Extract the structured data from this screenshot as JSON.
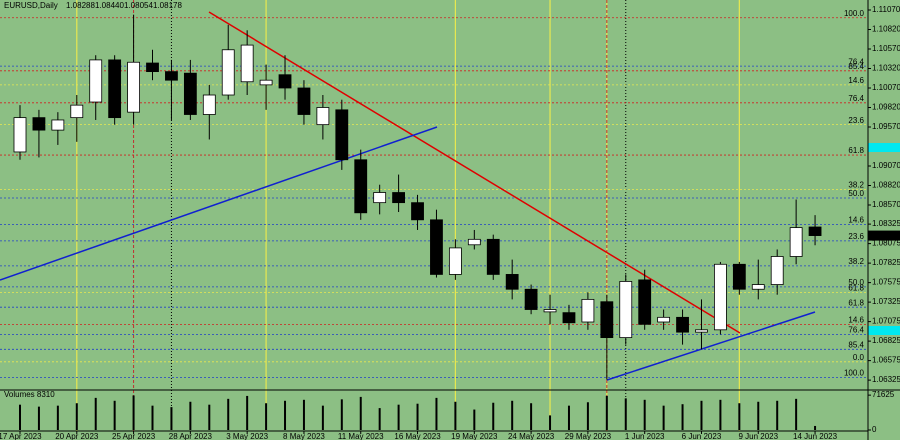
{
  "chart_data": {
    "type": "candlestick",
    "title": "EURUSD,Daily",
    "quote": [
      "1.08288",
      "1.08440",
      "1.08054",
      "1.08178"
    ],
    "categories": [
      "17 Apr 2023",
      null,
      null,
      "20 Apr 2023",
      null,
      null,
      "25 Apr 2023",
      null,
      null,
      "28 Apr 2023",
      null,
      null,
      "3 May 2023",
      null,
      null,
      "8 May 2023",
      null,
      null,
      "11 May 2023",
      null,
      null,
      "16 May 2023",
      null,
      null,
      "19 May 2023",
      null,
      null,
      "24 May 2023",
      null,
      null,
      "29 May 2023",
      null,
      null,
      "1 Jun 2023",
      null,
      null,
      "6 Jun 2023",
      null,
      null,
      "9 Jun 2023",
      null,
      null,
      "14 Jun 2023"
    ],
    "open": [
      1.0925,
      1.0969,
      1.0953,
      1.0969,
      1.0989,
      1.1043,
      1.0976,
      1.1039,
      1.1028,
      1.1026,
      1.0973,
      1.0998,
      1.1015,
      1.1011,
      1.1024,
      1.1007,
      1.096,
      1.0979,
      1.0915,
      1.086,
      1.0873,
      1.086,
      1.0838,
      1.0768,
      1.0806,
      1.0813,
      1.0768,
      1.0749,
      1.072,
      1.0719,
      1.0707,
      1.0733,
      1.0687,
      1.0761,
      1.0707,
      1.0713,
      1.0694,
      1.0697,
      1.0781,
      1.0749,
      1.0755,
      1.0791,
      1.08288
    ],
    "high": [
      1.0985,
      1.0979,
      1.0976,
      1.0998,
      1.1049,
      1.1049,
      1.1101,
      1.1056,
      1.1043,
      1.1043,
      1.1011,
      1.1088,
      1.1081,
      1.1037,
      1.1049,
      1.1017,
      1.0998,
      1.0992,
      1.0928,
      1.0883,
      1.0896,
      1.087,
      1.0851,
      1.0813,
      1.0825,
      1.0819,
      1.0787,
      1.0755,
      1.0742,
      1.0729,
      1.0745,
      1.0742,
      1.0768,
      1.0774,
      1.0723,
      1.0723,
      1.0736,
      1.0784,
      1.0784,
      1.0787,
      1.08,
      1.0864,
      1.0844
    ],
    "low": [
      1.0915,
      1.0918,
      1.0934,
      1.0938,
      1.0966,
      1.096,
      1.096,
      1.1017,
      1.0966,
      1.0966,
      1.0941,
      1.0992,
      1.0998,
      1.0979,
      1.0992,
      1.096,
      1.0941,
      1.0902,
      1.0838,
      1.0845,
      1.0848,
      1.0825,
      1.0764,
      1.0761,
      1.08,
      1.0761,
      1.0736,
      1.0717,
      1.0704,
      1.0697,
      1.0697,
      1.0633,
      1.0678,
      1.0697,
      1.0697,
      1.0678,
      1.0672,
      1.0691,
      1.0742,
      1.0736,
      1.0742,
      1.0781,
      1.08054
    ],
    "close": [
      1.0969,
      1.0953,
      1.0966,
      1.0985,
      1.1043,
      1.0969,
      1.104,
      1.1028,
      1.1017,
      1.0973,
      1.0998,
      1.1056,
      1.1062,
      1.1017,
      1.1007,
      1.0973,
      1.0982,
      1.0915,
      1.0847,
      1.0873,
      1.086,
      1.0838,
      1.0768,
      1.0802,
      1.0813,
      1.0768,
      1.0749,
      1.0723,
      1.0723,
      1.0706,
      1.0736,
      1.0687,
      1.0759,
      1.0704,
      1.0713,
      1.0694,
      1.0697,
      1.0781,
      1.0749,
      1.0755,
      1.0791,
      1.0828,
      1.08178
    ],
    "up_color": "#ffffff",
    "down_color": "#000000",
    "ylim": [
      1.06224,
      1.11198
    ],
    "yticks": [
      {
        "value": 1.1107,
        "label": "1.11070"
      },
      {
        "value": 1.1082,
        "label": "1.10820"
      },
      {
        "value": 1.1057,
        "label": "1.10570"
      },
      {
        "value": 1.1032,
        "label": "1.10320"
      },
      {
        "value": 1.1007,
        "label": "1.10070"
      },
      {
        "value": 1.0982,
        "label": "1.09820"
      },
      {
        "value": 1.0957,
        "label": "1.09570"
      },
      {
        "value": 1.0907,
        "label": "1.09070"
      },
      {
        "value": 1.0882,
        "label": "1.08820"
      },
      {
        "value": 1.0857,
        "label": "1.08570"
      },
      {
        "value": 1.08325,
        "label": "1.08325"
      },
      {
        "value": 1.08075,
        "label": "1.08075"
      },
      {
        "value": 1.07825,
        "label": "1.07825"
      },
      {
        "value": 1.07575,
        "label": "1.07575"
      },
      {
        "value": 1.07325,
        "label": "1.07325"
      },
      {
        "value": 1.07075,
        "label": "1.07075"
      },
      {
        "value": 1.06825,
        "label": "1.06825"
      },
      {
        "value": 1.06575,
        "label": "1.06575"
      },
      {
        "value": 1.06325,
        "label": "1.06325"
      }
    ],
    "levels": [
      {
        "label": "100.0",
        "value": 1.1097,
        "color": "#d02020"
      },
      {
        "label": "76.4",
        "value": 1.1035,
        "color": "#2040c8"
      },
      {
        "label": "85.4",
        "value": 1.1029,
        "color": "#d02020"
      },
      {
        "label": "14.6",
        "value": 1.1011,
        "color": "#e8e850"
      },
      {
        "label": "76.4",
        "value": 1.0988,
        "color": "#d02020"
      },
      {
        "label": "23.6",
        "value": 1.096,
        "color": "#e8e850"
      },
      {
        "label": "61.8",
        "value": 1.0921,
        "color": "#d02020"
      },
      {
        "label": "38.2",
        "value": 1.0877,
        "color": "#e8e850"
      },
      {
        "label": "50.0",
        "value": 1.0866,
        "color": "#2040c8"
      },
      {
        "label": "14.6",
        "value": 1.0832,
        "color": "#2040c8"
      },
      {
        "label": "23.6",
        "value": 1.0811,
        "color": "#2040c8"
      },
      {
        "label": "38.2",
        "value": 1.0779,
        "color": "#2040c8"
      },
      {
        "label": "50.0",
        "value": 1.0752,
        "color": "#2040c8"
      },
      {
        "label": "61.8",
        "value": 1.0745,
        "color": "#e8e850"
      },
      {
        "label": "61.8",
        "value": 1.0726,
        "color": "#2040c8"
      },
      {
        "label": "14.6",
        "value": 1.0704,
        "color": "#d02020"
      },
      {
        "label": "76.4",
        "value": 1.0691,
        "color": "#2040c8"
      },
      {
        "label": "85.4",
        "value": 1.0672,
        "color": "#2040c8"
      },
      {
        "label": "0.0",
        "value": 1.0656,
        "color": "#e8e850"
      },
      {
        "label": "100.0",
        "value": 1.0636,
        "color": "#2040c8"
      }
    ],
    "volume_title": "Volumes 8310",
    "volume": [
      52000,
      48000,
      50000,
      55000,
      66000,
      60000,
      71000,
      50000,
      47000,
      58000,
      52000,
      64000,
      70000,
      55000,
      60000,
      62000,
      50000,
      63000,
      68000,
      45000,
      52000,
      54000,
      66000,
      58000,
      42000,
      56000,
      60000,
      55000,
      30000,
      50000,
      57000,
      70000,
      65000,
      62000,
      50000,
      53000,
      60000,
      62000,
      55000,
      58000,
      60000,
      64000,
      8310
    ],
    "volume_ylim": [
      0,
      76000
    ],
    "volume_yticks": [
      71625,
      0
    ]
  }
}
